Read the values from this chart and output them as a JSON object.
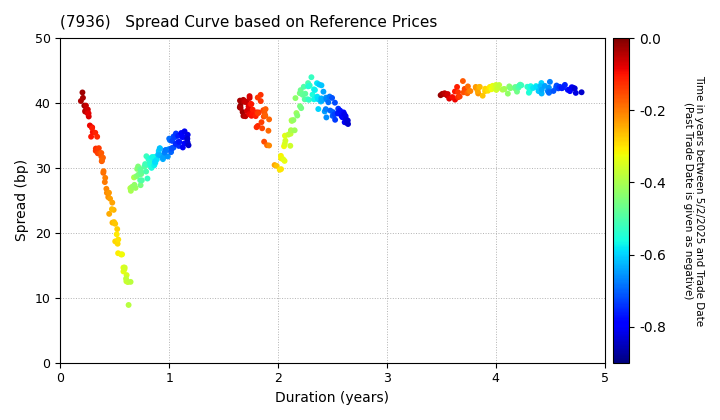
{
  "title": "(7936)   Spread Curve based on Reference Prices",
  "xlabel": "Duration (years)",
  "ylabel": "Spread (bp)",
  "colorbar_label": "Time in years between 5/2/2025 and Trade Date\n(Past Trade Date is given as negative)",
  "xlim": [
    0,
    5
  ],
  "ylim": [
    0,
    50
  ],
  "xticks": [
    0,
    1,
    2,
    3,
    4,
    5
  ],
  "yticks": [
    0,
    10,
    20,
    30,
    40,
    50
  ],
  "cmap": "jet",
  "vmin": -0.9,
  "vmax": 0.0,
  "colorbar_ticks": [
    0.0,
    -0.2,
    -0.4,
    -0.6,
    -0.8
  ],
  "background_color": "#ffffff",
  "dot_size": 18,
  "grid_color": "#aaaaaa",
  "grid_style": "dotted"
}
